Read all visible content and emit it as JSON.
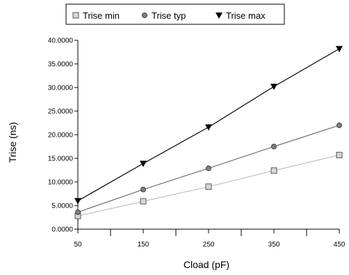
{
  "chart_data": {
    "type": "line",
    "x": [
      50,
      150,
      250,
      350,
      450
    ],
    "series": [
      {
        "name": "Trise min",
        "marker": "square",
        "color": "#c0c0c0",
        "values": [
          2.8,
          5.9,
          9.0,
          12.4,
          15.7
        ]
      },
      {
        "name": "Trise typ",
        "marker": "circle",
        "color": "#707070",
        "values": [
          3.6,
          8.4,
          12.9,
          17.5,
          22.0
        ]
      },
      {
        "name": "Trise max",
        "marker": "triangle-down",
        "color": "#000000",
        "values": [
          6.0,
          13.9,
          21.6,
          30.2,
          38.2
        ]
      }
    ],
    "xlabel": "Cload (pF)",
    "ylabel": "Trise (ns)",
    "xlim": [
      50,
      450
    ],
    "ylim": [
      0,
      40
    ],
    "xticks": [
      50,
      150,
      250,
      350,
      450
    ],
    "xtick_labels": [
      "50",
      "150",
      "250",
      "350",
      "450"
    ],
    "yticks": [
      0,
      5,
      10,
      15,
      20,
      25,
      30,
      35,
      40
    ],
    "ytick_labels": [
      "0.0000",
      "5.0000",
      "10.0000",
      "15.0000",
      "20.0000",
      "25.0000",
      "30.0000",
      "35.0000",
      "40.0000"
    ],
    "legend_position": "top",
    "grid": false
  }
}
